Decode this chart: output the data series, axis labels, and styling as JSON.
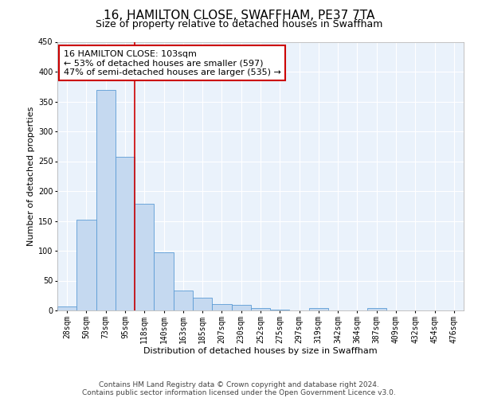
{
  "title": "16, HAMILTON CLOSE, SWAFFHAM, PE37 7TA",
  "subtitle": "Size of property relative to detached houses in Swaffham",
  "xlabel": "Distribution of detached houses by size in Swaffham",
  "ylabel": "Number of detached properties",
  "bar_labels": [
    "28sqm",
    "50sqm",
    "73sqm",
    "95sqm",
    "118sqm",
    "140sqm",
    "163sqm",
    "185sqm",
    "207sqm",
    "230sqm",
    "252sqm",
    "275sqm",
    "297sqm",
    "319sqm",
    "342sqm",
    "364sqm",
    "387sqm",
    "409sqm",
    "432sqm",
    "454sqm",
    "476sqm"
  ],
  "bar_values": [
    7,
    152,
    370,
    257,
    179,
    97,
    33,
    21,
    11,
    9,
    4,
    1,
    0,
    4,
    0,
    0,
    4,
    0,
    0,
    0,
    0
  ],
  "bar_color": "#c5d9f0",
  "bar_edge_color": "#5b9bd5",
  "background_color": "#eaf2fb",
  "grid_color": "#ffffff",
  "vline_x": 3.5,
  "vline_color": "#cc0000",
  "annotation_line1": "16 HAMILTON CLOSE: 103sqm",
  "annotation_line2": "← 53% of detached houses are smaller (597)",
  "annotation_line3": "47% of semi-detached houses are larger (535) →",
  "annotation_box_color": "#cc0000",
  "ylim": [
    0,
    450
  ],
  "yticks": [
    0,
    50,
    100,
    150,
    200,
    250,
    300,
    350,
    400,
    450
  ],
  "footer_line1": "Contains HM Land Registry data © Crown copyright and database right 2024.",
  "footer_line2": "Contains public sector information licensed under the Open Government Licence v3.0.",
  "title_fontsize": 11,
  "subtitle_fontsize": 9,
  "axis_label_fontsize": 8,
  "tick_fontsize": 7,
  "annotation_fontsize": 8,
  "footer_fontsize": 6.5
}
